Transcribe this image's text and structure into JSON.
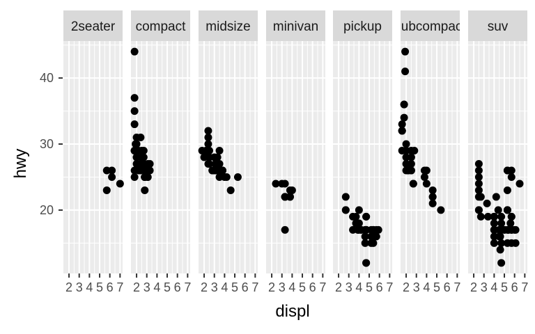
{
  "chart_data": {
    "type": "scatter",
    "xlabel": "displ",
    "ylabel": "hwy",
    "xlim": [
      1.45,
      7.25
    ],
    "ylim": [
      10.4,
      45.6
    ],
    "x_ticks": [
      2,
      3,
      4,
      5,
      6,
      7
    ],
    "x_tick_labels": [
      "2",
      "3",
      "4",
      "5",
      "6",
      "7"
    ],
    "y_ticks": [
      20,
      30,
      40
    ],
    "y_tick_labels": [
      "20",
      "30",
      "40"
    ],
    "facet_variable": "class",
    "grid": true,
    "panel_background": "#ebebeb",
    "strip_background": "#d9d9d9",
    "point_color": "#000000",
    "panels": [
      {
        "label": "2seater",
        "points": [
          [
            5.7,
            26
          ],
          [
            5.7,
            23
          ],
          [
            6.2,
            26
          ],
          [
            6.2,
            25
          ],
          [
            7.0,
            24
          ]
        ]
      },
      {
        "label": "compact",
        "points": [
          [
            1.8,
            29
          ],
          [
            1.8,
            29
          ],
          [
            2.0,
            31
          ],
          [
            2.0,
            30
          ],
          [
            2.8,
            26
          ],
          [
            2.8,
            26
          ],
          [
            3.1,
            27
          ],
          [
            1.8,
            26
          ],
          [
            1.8,
            25
          ],
          [
            2.0,
            28
          ],
          [
            2.0,
            27
          ],
          [
            2.8,
            25
          ],
          [
            2.8,
            25
          ],
          [
            3.1,
            25
          ],
          [
            3.1,
            25
          ],
          [
            2.2,
            26
          ],
          [
            2.2,
            29
          ],
          [
            2.4,
            27
          ],
          [
            2.4,
            31
          ],
          [
            3.0,
            26
          ],
          [
            3.0,
            26
          ],
          [
            3.3,
            27
          ],
          [
            1.8,
            44
          ],
          [
            1.8,
            35
          ],
          [
            1.8,
            37
          ],
          [
            1.8,
            33
          ],
          [
            2.0,
            29
          ],
          [
            2.5,
            29
          ],
          [
            2.5,
            27
          ],
          [
            2.8,
            25
          ],
          [
            2.8,
            23
          ],
          [
            2.7,
            27
          ],
          [
            2.7,
            28
          ],
          [
            2.7,
            29
          ],
          [
            3.3,
            26
          ],
          [
            1.8,
            29
          ],
          [
            2.0,
            28
          ],
          [
            2.4,
            27
          ],
          [
            2.4,
            27
          ],
          [
            1.9,
            30
          ],
          [
            2.0,
            29
          ],
          [
            2.5,
            28
          ],
          [
            2.4,
            26
          ],
          [
            2.0,
            29
          ],
          [
            2.8,
            25
          ]
        ]
      },
      {
        "label": "midsize",
        "points": [
          [
            2.8,
            26
          ],
          [
            3.1,
            27
          ],
          [
            4.2,
            25
          ],
          [
            2.4,
            29
          ],
          [
            2.4,
            27
          ],
          [
            3.1,
            26
          ],
          [
            3.5,
            26
          ],
          [
            3.6,
            26
          ],
          [
            2.4,
            30
          ],
          [
            3.0,
            26
          ],
          [
            3.3,
            28
          ],
          [
            3.3,
            26
          ],
          [
            3.8,
            26
          ],
          [
            3.8,
            26
          ],
          [
            3.8,
            26
          ],
          [
            5.3,
            25
          ],
          [
            2.5,
            27
          ],
          [
            2.5,
            29
          ],
          [
            3.5,
            29
          ],
          [
            3.5,
            25
          ],
          [
            3.0,
            28
          ],
          [
            3.0,
            26
          ],
          [
            3.5,
            26
          ],
          [
            2.5,
            28
          ],
          [
            2.5,
            28
          ],
          [
            3.3,
            26
          ],
          [
            2.2,
            29
          ],
          [
            2.2,
            29
          ],
          [
            2.4,
            29
          ],
          [
            2.4,
            31
          ],
          [
            3.0,
            26
          ],
          [
            3.0,
            26
          ],
          [
            3.5,
            27
          ],
          [
            2.4,
            32
          ],
          [
            3.3,
            27
          ],
          [
            4.0,
            25
          ],
          [
            4.6,
            23
          ],
          [
            1.8,
            29
          ],
          [
            2.0,
            28
          ],
          [
            2.8,
            26
          ],
          [
            2.5,
            29
          ],
          [
            2.4,
            29
          ]
        ]
      },
      {
        "label": "minivan",
        "points": [
          [
            2.4,
            24
          ],
          [
            3.0,
            24
          ],
          [
            3.3,
            22
          ],
          [
            3.3,
            22
          ],
          [
            3.3,
            24
          ],
          [
            3.8,
            22
          ],
          [
            3.8,
            23
          ],
          [
            4.0,
            23
          ],
          [
            3.8,
            22
          ],
          [
            3.3,
            17
          ],
          [
            3.3,
            22
          ]
        ]
      },
      {
        "label": "pickup",
        "points": [
          [
            3.7,
            19
          ],
          [
            3.7,
            18
          ],
          [
            3.9,
            17
          ],
          [
            3.9,
            17
          ],
          [
            4.7,
            19
          ],
          [
            4.7,
            19
          ],
          [
            4.7,
            12
          ],
          [
            5.2,
            17
          ],
          [
            5.2,
            15
          ],
          [
            5.7,
            17
          ],
          [
            5.9,
            17
          ],
          [
            4.7,
            17
          ],
          [
            4.7,
            17
          ],
          [
            5.2,
            16
          ],
          [
            5.7,
            16
          ],
          [
            4.2,
            17
          ],
          [
            4.2,
            17
          ],
          [
            4.6,
            16
          ],
          [
            4.6,
            15
          ],
          [
            4.6,
            17
          ],
          [
            5.4,
            17
          ],
          [
            5.4,
            17
          ],
          [
            5.4,
            16
          ],
          [
            2.7,
            20
          ],
          [
            2.7,
            20
          ],
          [
            2.7,
            22
          ],
          [
            3.4,
            17
          ],
          [
            3.4,
            19
          ],
          [
            4.0,
            18
          ],
          [
            4.0,
            20
          ],
          [
            4.0,
            17
          ],
          [
            4.7,
            17
          ],
          [
            4.7,
            12
          ],
          [
            5.4,
            15
          ]
        ]
      },
      {
        "label": "subcompact",
        "points": [
          [
            3.8,
            26
          ],
          [
            3.8,
            25
          ],
          [
            4.0,
            26
          ],
          [
            4.0,
            24
          ],
          [
            4.6,
            21
          ],
          [
            4.6,
            22
          ],
          [
            4.6,
            23
          ],
          [
            4.6,
            22
          ],
          [
            5.4,
            20
          ],
          [
            1.6,
            33
          ],
          [
            1.6,
            32
          ],
          [
            1.6,
            32
          ],
          [
            1.6,
            29
          ],
          [
            1.6,
            32
          ],
          [
            1.8,
            34
          ],
          [
            1.8,
            36
          ],
          [
            1.8,
            36
          ],
          [
            2.0,
            29
          ],
          [
            2.0,
            26
          ],
          [
            2.0,
            27
          ],
          [
            2.0,
            30
          ],
          [
            2.7,
            24
          ],
          [
            2.7,
            24
          ],
          [
            2.5,
            27
          ],
          [
            2.5,
            26
          ],
          [
            2.2,
            26
          ],
          [
            2.2,
            26
          ],
          [
            2.5,
            28
          ],
          [
            1.9,
            44
          ],
          [
            1.9,
            41
          ],
          [
            2.0,
            29
          ],
          [
            2.5,
            29
          ],
          [
            2.0,
            28
          ],
          [
            2.8,
            29
          ],
          [
            2.5,
            26
          ]
        ]
      },
      {
        "label": "suv",
        "points": [
          [
            5.3,
            20
          ],
          [
            5.3,
            15
          ],
          [
            5.3,
            20
          ],
          [
            5.7,
            17
          ],
          [
            6.0,
            17
          ],
          [
            5.7,
            26
          ],
          [
            5.3,
            23
          ],
          [
            5.3,
            26
          ],
          [
            5.7,
            25
          ],
          [
            6.5,
            24
          ],
          [
            5.7,
            17
          ],
          [
            5.3,
            17
          ],
          [
            4.7,
            19
          ],
          [
            4.7,
            17
          ],
          [
            5.7,
            17
          ],
          [
            6.1,
            17
          ],
          [
            4.0,
            17
          ],
          [
            4.0,
            17
          ],
          [
            4.6,
            16
          ],
          [
            5.0,
            17
          ],
          [
            4.2,
            22
          ],
          [
            4.4,
            20
          ],
          [
            4.6,
            17
          ],
          [
            5.4,
            17
          ],
          [
            5.4,
            17
          ],
          [
            4.0,
            19
          ],
          [
            4.0,
            19
          ],
          [
            4.0,
            19
          ],
          [
            4.0,
            18
          ],
          [
            4.6,
            17
          ],
          [
            5.0,
            17
          ],
          [
            5.6,
            18
          ],
          [
            4.7,
            17
          ],
          [
            4.7,
            17
          ],
          [
            4.7,
            12
          ],
          [
            5.7,
            19
          ],
          [
            6.1,
            15
          ],
          [
            5.3,
            26
          ],
          [
            5.3,
            20
          ],
          [
            5.7,
            15
          ],
          [
            2.5,
            20
          ],
          [
            2.5,
            20
          ],
          [
            2.5,
            22
          ],
          [
            2.5,
            23
          ],
          [
            2.5,
            25
          ],
          [
            2.5,
            27
          ],
          [
            2.5,
            26
          ],
          [
            2.5,
            24
          ],
          [
            3.3,
            21
          ],
          [
            4.5,
            17
          ],
          [
            4.5,
            16
          ],
          [
            4.7,
            15
          ],
          [
            4.7,
            18
          ],
          [
            4.0,
            16
          ],
          [
            4.0,
            15
          ],
          [
            4.6,
            14
          ],
          [
            4.7,
            17
          ],
          [
            5.7,
            19
          ],
          [
            2.7,
            19
          ],
          [
            2.7,
            22
          ],
          [
            4.0,
            17
          ],
          [
            3.4,
            19
          ]
        ]
      }
    ]
  }
}
